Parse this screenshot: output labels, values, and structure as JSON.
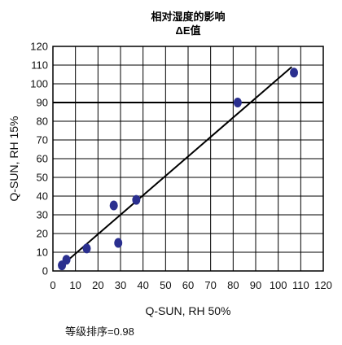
{
  "chart_data": {
    "type": "scatter",
    "title": "相对湿度的影响",
    "subtitle": "ΔE值",
    "xlabel": "Q-SUN, RH 50%",
    "ylabel": "Q-SUN, RH 15%",
    "xlim": [
      0,
      120
    ],
    "ylim": [
      0,
      120
    ],
    "x_ticks": [
      0,
      10,
      20,
      30,
      40,
      50,
      60,
      70,
      80,
      90,
      100,
      110,
      120
    ],
    "y_ticks": [
      0,
      10,
      20,
      30,
      40,
      50,
      60,
      70,
      80,
      90,
      100,
      110,
      120
    ],
    "grid": true,
    "legend": "none",
    "point_color": "#2a2f8f",
    "line_color": "#000000",
    "points": [
      {
        "x": 4,
        "y": 3
      },
      {
        "x": 6,
        "y": 6
      },
      {
        "x": 15,
        "y": 12
      },
      {
        "x": 27,
        "y": 35
      },
      {
        "x": 29,
        "y": 15
      },
      {
        "x": 37,
        "y": 38
      },
      {
        "x": 82,
        "y": 90
      },
      {
        "x": 107,
        "y": 106
      }
    ],
    "trendline": [
      [
        4,
        3
      ],
      [
        106,
        109
      ]
    ],
    "footnote": "等级排序=0.98"
  }
}
